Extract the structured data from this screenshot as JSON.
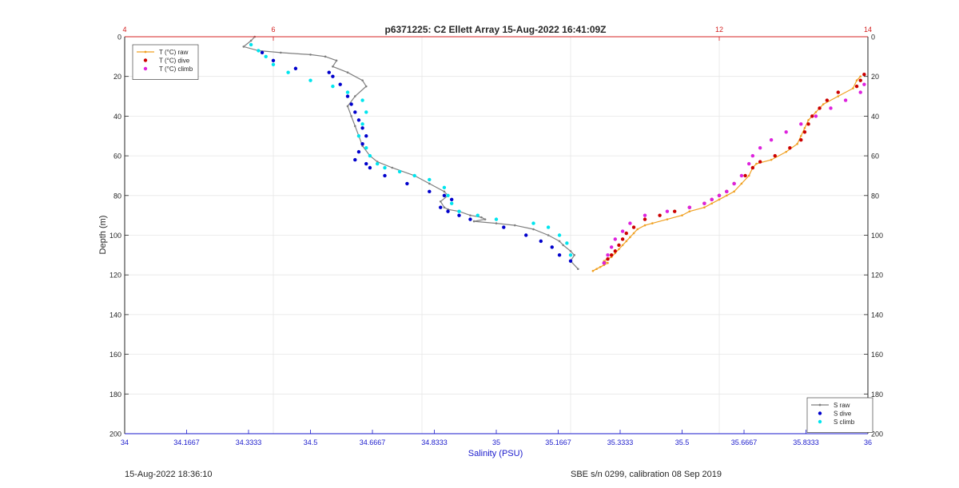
{
  "chart_data": {
    "type": "scatter",
    "title": "p6371225: C2 Ellett Array 15-Aug-2022 16:41:09Z",
    "xlabel": "Salinity (PSU)",
    "ylabel": "Depth (m)",
    "xlim": [
      34,
      36
    ],
    "x_top_lim": [
      4,
      14
    ],
    "ylim": [
      200,
      0
    ],
    "x_ticks": [
      "34",
      "34.1667",
      "34.3333",
      "34.5",
      "34.6667",
      "34.8333",
      "35",
      "35.1667",
      "35.3333",
      "35.5",
      "35.6667",
      "35.8333",
      "36"
    ],
    "x_top_ticks": [
      "4",
      "6",
      "12",
      "14"
    ],
    "y_ticks": [
      "0",
      "20",
      "40",
      "60",
      "80",
      "100",
      "120",
      "140",
      "160",
      "180",
      "200"
    ],
    "grid": true,
    "colors": {
      "axis_bottom": "#1a1acc",
      "axis_top": "#d42020",
      "axis_right": "#262626",
      "s_raw": "#7f7f7f",
      "s_dive": "#0000cc",
      "s_climb": "#00e5ee",
      "t_raw": "#f0a020",
      "t_dive": "#cc0000",
      "t_climb": "#dd22dd"
    },
    "legend_temperature": {
      "placement": "top-left",
      "entries": [
        "T (°C) raw",
        "T (°C) dive",
        "T (°C) climb"
      ]
    },
    "legend_salinity": {
      "placement": "bottom-right",
      "entries": [
        "S raw",
        "S dive",
        "S climb"
      ]
    },
    "series": [
      {
        "name": "S raw",
        "axis": "bottom",
        "style": "line",
        "x": [
          34.35,
          34.34,
          34.32,
          34.36,
          34.42,
          34.5,
          34.54,
          34.57,
          34.56,
          34.6,
          34.64,
          34.65,
          34.62,
          34.6,
          34.61,
          34.62,
          34.63,
          34.64,
          34.66,
          34.68,
          34.72,
          34.78,
          34.82,
          34.86,
          34.87,
          34.85,
          34.86,
          34.87,
          34.9,
          34.93,
          34.96,
          34.97,
          34.94,
          35.0,
          35.05,
          35.1,
          35.14,
          35.17,
          35.18,
          35.2,
          35.21,
          35.2,
          35.22
        ],
        "y": [
          0,
          2,
          5,
          7,
          8,
          9,
          10,
          12,
          15,
          18,
          22,
          25,
          30,
          35,
          40,
          45,
          50,
          55,
          60,
          63,
          66,
          70,
          74,
          78,
          80,
          83,
          86,
          87,
          88,
          90,
          91,
          92,
          93,
          94,
          95,
          97,
          100,
          103,
          105,
          108,
          110,
          113,
          117
        ]
      },
      {
        "name": "S dive",
        "axis": "bottom",
        "style": "dot",
        "x": [
          34.37,
          34.4,
          34.46,
          34.55,
          34.56,
          34.58,
          34.6,
          34.61,
          34.62,
          34.63,
          34.64,
          34.65,
          34.64,
          34.63,
          34.62,
          34.65,
          34.66,
          34.7,
          34.76,
          34.82,
          34.86,
          34.88,
          34.85,
          34.87,
          34.9,
          34.93,
          35.02,
          35.08,
          35.12,
          35.15,
          35.17,
          35.2
        ],
        "y": [
          8,
          12,
          16,
          18,
          20,
          24,
          30,
          34,
          38,
          42,
          46,
          50,
          54,
          58,
          62,
          64,
          66,
          70,
          74,
          78,
          80,
          82,
          86,
          88,
          90,
          92,
          96,
          100,
          103,
          106,
          110,
          113
        ]
      },
      {
        "name": "S climb",
        "axis": "bottom",
        "style": "dot",
        "x": [
          34.34,
          34.36,
          34.38,
          34.4,
          34.44,
          34.5,
          34.56,
          34.6,
          34.64,
          34.65,
          34.64,
          34.63,
          34.65,
          34.66,
          34.68,
          34.7,
          34.74,
          34.78,
          34.82,
          34.86,
          34.87,
          34.88,
          34.9,
          34.95,
          35.0,
          35.1,
          35.14,
          35.17,
          35.19,
          35.2
        ],
        "y": [
          4,
          7,
          10,
          14,
          18,
          22,
          25,
          28,
          32,
          38,
          44,
          50,
          56,
          60,
          64,
          66,
          68,
          70,
          72,
          76,
          80,
          84,
          88,
          90,
          92,
          94,
          96,
          100,
          104,
          110
        ]
      },
      {
        "name": "T (°C) raw",
        "axis": "top",
        "style": "line",
        "x": [
          13.9,
          13.85,
          13.8,
          13.6,
          13.4,
          13.3,
          13.2,
          13.15,
          13.1,
          13.05,
          12.9,
          12.7,
          12.5,
          12.45,
          12.4,
          12.3,
          12.2,
          12.1,
          12.0,
          11.9,
          11.8,
          11.6,
          11.5,
          11.3,
          11.1,
          11.0,
          10.9,
          10.85,
          10.8,
          10.75,
          10.7,
          10.65,
          10.6,
          10.55,
          10.5,
          10.45,
          10.5,
          10.45,
          10.4,
          10.35,
          10.3
        ],
        "y": [
          20,
          22,
          26,
          30,
          34,
          38,
          42,
          46,
          50,
          54,
          58,
          62,
          64,
          66,
          70,
          74,
          78,
          80,
          82,
          84,
          86,
          88,
          90,
          92,
          94,
          95,
          97,
          99,
          101,
          103,
          105,
          107,
          109,
          111,
          112,
          113,
          114,
          115,
          116,
          117,
          118
        ]
      },
      {
        "name": "T (°C) dive",
        "axis": "top",
        "style": "dot",
        "x": [
          13.95,
          13.9,
          13.85,
          13.6,
          13.45,
          13.35,
          13.25,
          13.2,
          13.15,
          13.1,
          12.95,
          12.75,
          12.55,
          12.45,
          12.35,
          12.2,
          12.1,
          12.0,
          11.9,
          11.8,
          11.6,
          11.4,
          11.2,
          11.0,
          10.85,
          10.75,
          10.7,
          10.65,
          10.6,
          10.55,
          10.5,
          10.45
        ],
        "y": [
          19,
          22,
          25,
          28,
          32,
          36,
          40,
          44,
          48,
          52,
          56,
          60,
          63,
          66,
          70,
          74,
          78,
          80,
          82,
          84,
          86,
          88,
          90,
          92,
          96,
          99,
          102,
          105,
          108,
          110,
          112,
          114
        ]
      },
      {
        "name": "T (°C) climb",
        "axis": "top",
        "style": "dot",
        "x": [
          13.95,
          13.9,
          13.7,
          13.5,
          13.3,
          13.1,
          12.9,
          12.7,
          12.55,
          12.45,
          12.4,
          12.3,
          12.2,
          12.1,
          12.0,
          11.9,
          11.8,
          11.6,
          11.3,
          11.0,
          10.8,
          10.7,
          10.6,
          10.55,
          10.5,
          10.45
        ],
        "y": [
          24,
          28,
          32,
          36,
          40,
          44,
          48,
          52,
          56,
          60,
          64,
          70,
          74,
          78,
          80,
          82,
          84,
          86,
          88,
          90,
          94,
          98,
          102,
          106,
          110,
          114
        ]
      }
    ]
  },
  "footer": {
    "timestamp": "15-Aug-2022 18:36:10",
    "calibration": "SBE s/n 0299, calibration 08 Sep 2019"
  }
}
